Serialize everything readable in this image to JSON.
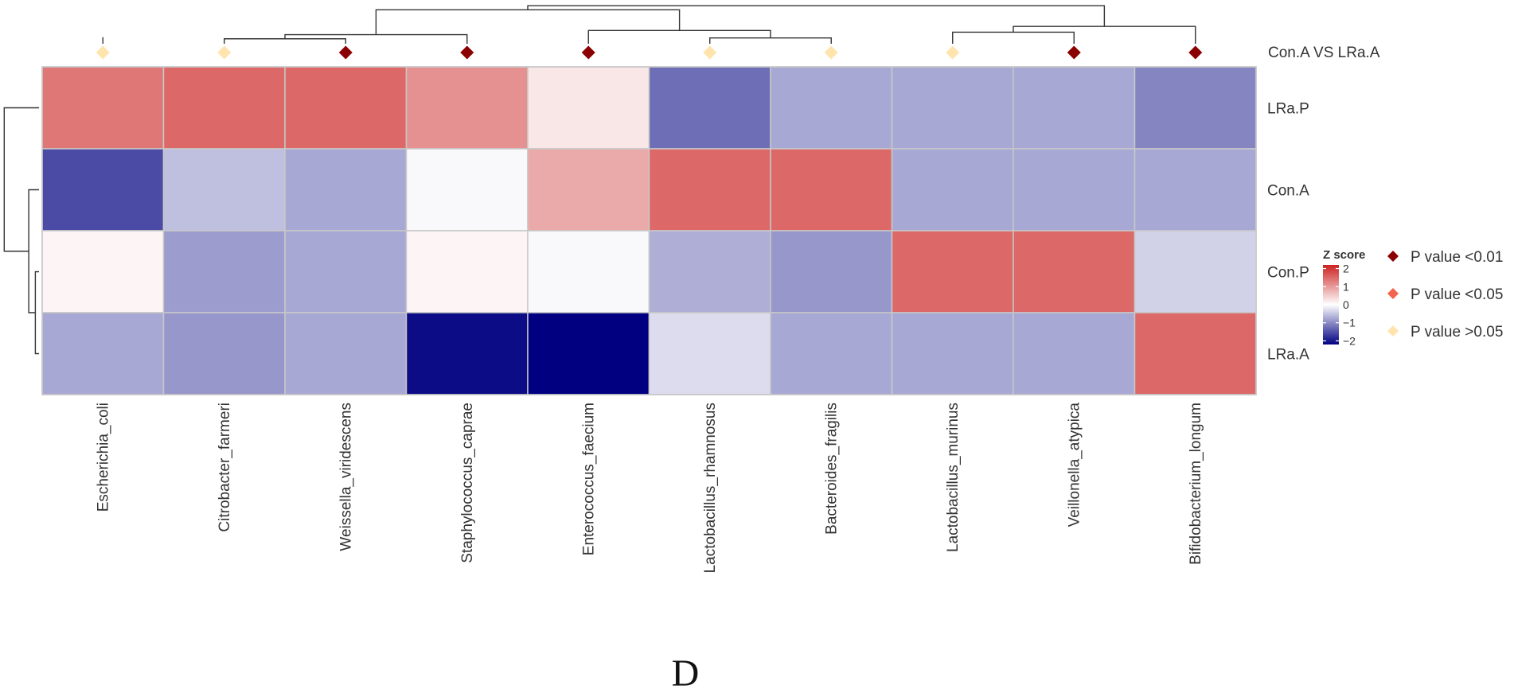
{
  "panel_label": "D",
  "chart_data": {
    "type": "heatmap",
    "title": "",
    "rows": [
      "LRa.P",
      "Con.A",
      "Con.P",
      "LRa.A"
    ],
    "columns": [
      "Escherichia_coli",
      "Citrobacter_farmeri",
      "Weissella_viridescens",
      "Staphylococcus_caprae",
      "Enterococcus_faecium",
      "Lactobacillus_rhamnosus",
      "Bacteroides_fragilis",
      "Lactobacillus_murinus",
      "Veillonella_atypica",
      "Bifidobacterium_longum"
    ],
    "values": [
      [
        1.35,
        1.5,
        1.5,
        1.1,
        0.25,
        -1.25,
        -0.75,
        -0.75,
        -0.75,
        -1.05
      ],
      [
        -1.55,
        -0.55,
        -0.75,
        -0.05,
        0.85,
        1.5,
        1.5,
        -0.75,
        -0.75,
        -0.75
      ],
      [
        0.1,
        -0.85,
        -0.75,
        0.1,
        -0.05,
        -0.7,
        -0.9,
        1.5,
        1.5,
        -0.4
      ],
      [
        -0.75,
        -0.9,
        -0.75,
        -2.1,
        -2.2,
        -0.3,
        -0.75,
        -0.75,
        -0.75,
        1.5
      ]
    ],
    "annotation": {
      "name": "Con.A VS LRa.A",
      "levels": [
        "P value <0.01",
        "P value <0.05",
        "P value >0.05"
      ],
      "colors": [
        "#8B0000",
        "#F4634E",
        "#FFE4AE"
      ],
      "values": [
        "P value >0.05",
        "P value >0.05",
        "P value <0.01",
        "P value <0.01",
        "P value <0.01",
        "P value >0.05",
        "P value >0.05",
        "P value >0.05",
        "P value <0.01",
        "P value <0.01"
      ]
    },
    "colorbar": {
      "title": "Z score",
      "ticks": [
        2,
        1,
        0,
        -1,
        -2
      ],
      "tick_labels": [
        "2",
        "1",
        "0",
        "−1",
        "−2"
      ],
      "range": [
        -2.2,
        2.2
      ],
      "colors": {
        "low": "#000080",
        "mid": "#ffffff",
        "high": "#CC2222"
      }
    },
    "column_dendrogram": [
      [
        1,
        2,
        0.12
      ],
      [
        0,
        101,
        0.16
      ],
      [
        100,
        3,
        0.22
      ],
      [
        5,
        6,
        0.14
      ],
      [
        4,
        103,
        0.32
      ],
      [
        7,
        8,
        0.28
      ],
      [
        105,
        9,
        0.42
      ],
      [
        102,
        104,
        0.82
      ],
      [
        107,
        106,
        0.92
      ]
    ],
    "row_dendrogram": [
      [
        2,
        3,
        0.1
      ],
      [
        1,
        100,
        0.28
      ],
      [
        0,
        101,
        0.95
      ]
    ]
  }
}
